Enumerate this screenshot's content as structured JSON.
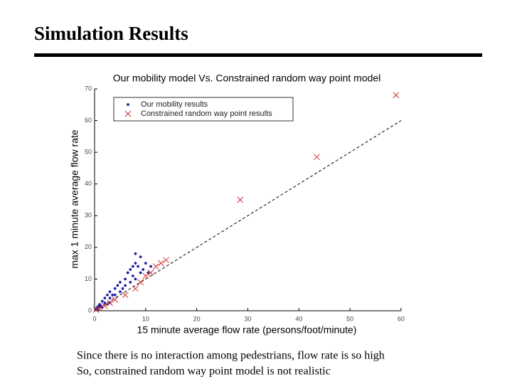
{
  "slide": {
    "title": "Simulation Results",
    "notes": [
      "Since there is no interaction among pedestrians, flow rate is so high",
      "So, constrained random way point model is not realistic"
    ]
  },
  "chart_data": {
    "type": "scatter",
    "title": "Our mobility model Vs. Constrained random way point model",
    "x_label": "15 minute average flow rate (persons/foot/minute)",
    "y_label": "max 1 minute average flow rate",
    "xlim": [
      0,
      60
    ],
    "xticks": [
      0,
      10,
      20,
      30,
      40,
      50,
      60
    ],
    "ylim": [
      0,
      70
    ],
    "yticks": [
      0,
      10,
      20,
      30,
      40,
      50,
      60,
      70
    ],
    "legend": "upper left",
    "reference_line": {
      "x": [
        0,
        60
      ],
      "y": [
        0,
        60
      ],
      "color": "#000000"
    },
    "series": [
      {
        "name": "Our mobility results",
        "color": "#1a1aa0",
        "x": [
          0.2,
          0.5,
          0.8,
          1,
          1.2,
          1.5,
          2,
          2,
          2.5,
          3,
          3,
          3.5,
          4,
          4,
          4.5,
          5,
          5,
          5.5,
          6,
          6,
          6.5,
          7,
          7,
          7.5,
          8,
          8,
          8.5,
          9,
          9,
          9.5,
          10,
          10.5,
          11,
          1.5,
          2.5,
          3,
          0.7,
          8,
          7.5
        ],
        "y": [
          0.5,
          1,
          1.5,
          2,
          1.5,
          3,
          2.5,
          4,
          5,
          4,
          6,
          5,
          7,
          5,
          8,
          6,
          9,
          7,
          10,
          8,
          12,
          9,
          13,
          11,
          15,
          10,
          14,
          12,
          17,
          13,
          15,
          12,
          14,
          1,
          2,
          2.5,
          0.3,
          18,
          14
        ]
      },
      {
        "name": "Constrained random way point results",
        "color": "#d03030",
        "x": [
          0.3,
          1,
          2,
          3,
          4,
          6,
          8,
          9,
          10,
          11,
          12,
          13,
          14,
          28.5,
          43.5,
          59
        ],
        "y": [
          0.3,
          0.8,
          1.5,
          2.5,
          3.5,
          5,
          7,
          9,
          11,
          12,
          14,
          15,
          16,
          35,
          48.5,
          68
        ]
      }
    ]
  }
}
